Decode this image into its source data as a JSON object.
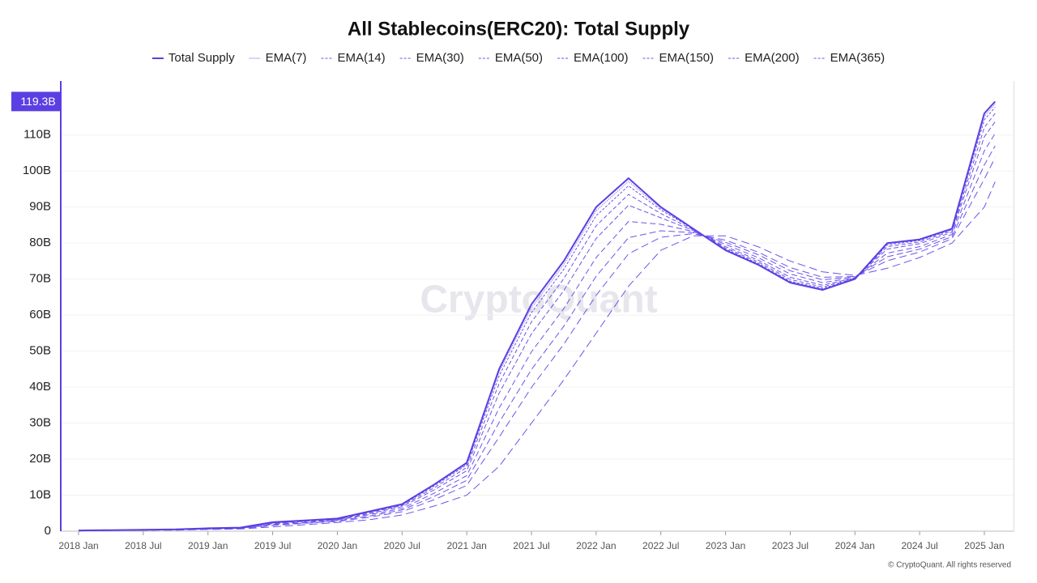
{
  "chart_data": {
    "type": "line",
    "title": "All Stablecoins(ERC20): Total Supply",
    "watermark": "CryptoQuant",
    "footer": "© CryptoQuant. All rights reserved",
    "x": [
      "2018-01",
      "2018-04",
      "2018-07",
      "2018-10",
      "2019-01",
      "2019-04",
      "2019-07",
      "2019-10",
      "2020-01",
      "2020-04",
      "2020-07",
      "2020-10",
      "2021-01",
      "2021-04",
      "2021-07",
      "2021-10",
      "2022-01",
      "2022-04",
      "2022-07",
      "2022-10",
      "2023-01",
      "2023-04",
      "2023-07",
      "2023-10",
      "2024-01",
      "2024-04",
      "2024-07",
      "2024-10",
      "2025-01",
      "2025-02"
    ],
    "xlim": [
      "2017-12",
      "2025-03"
    ],
    "xticks": [
      {
        "value": "2018-01",
        "label": "2018 Jan"
      },
      {
        "value": "2018-07",
        "label": "2018 Jul"
      },
      {
        "value": "2019-01",
        "label": "2019 Jan"
      },
      {
        "value": "2019-07",
        "label": "2019 Jul"
      },
      {
        "value": "2020-01",
        "label": "2020 Jan"
      },
      {
        "value": "2020-07",
        "label": "2020 Jul"
      },
      {
        "value": "2021-01",
        "label": "2021 Jan"
      },
      {
        "value": "2021-07",
        "label": "2021 Jul"
      },
      {
        "value": "2022-01",
        "label": "2022 Jan"
      },
      {
        "value": "2022-07",
        "label": "2022 Jul"
      },
      {
        "value": "2023-01",
        "label": "2023 Jan"
      },
      {
        "value": "2023-07",
        "label": "2023 Jul"
      },
      {
        "value": "2024-01",
        "label": "2024 Jan"
      },
      {
        "value": "2024-07",
        "label": "2024 Jul"
      },
      {
        "value": "2025-01",
        "label": "2025 Jan"
      }
    ],
    "ylim": [
      0,
      125
    ],
    "yticks": [
      0,
      {
        "value": 10,
        "label": "10B"
      },
      {
        "value": 20,
        "label": "20B"
      },
      {
        "value": 30,
        "label": "30B"
      },
      {
        "value": 40,
        "label": "40B"
      },
      {
        "value": 50,
        "label": "50B"
      },
      {
        "value": 60,
        "label": "60B"
      },
      {
        "value": 70,
        "label": "70B"
      },
      {
        "value": 80,
        "label": "80B"
      },
      {
        "value": 90,
        "label": "90B"
      },
      {
        "value": 100,
        "label": "100B"
      },
      {
        "value": 110,
        "label": "110B"
      }
    ],
    "grid": true,
    "series": [
      {
        "name": "Total Supply",
        "color": "#5b3fe3",
        "width": 2,
        "dash": "none",
        "values": [
          0.2,
          0.3,
          0.4,
          0.5,
          0.8,
          1.0,
          2.5,
          3.0,
          3.5,
          5.5,
          7.5,
          13,
          19,
          45,
          63,
          75,
          90,
          98,
          90,
          84,
          78,
          74,
          69,
          67,
          70,
          80,
          81,
          84,
          116,
          119.3
        ],
        "value_labels": [
          null,
          null,
          null,
          null,
          null,
          null,
          null,
          null,
          null,
          null,
          null,
          null,
          null,
          null,
          null,
          null,
          null,
          null,
          null,
          null,
          null,
          null,
          null,
          null,
          null,
          null,
          null,
          null,
          null,
          "119.3B"
        ]
      },
      {
        "name": "EMA(7)",
        "color": "#6a55ea",
        "width": 1,
        "dash": "1 1.5",
        "values": [
          0.2,
          0.3,
          0.4,
          0.5,
          0.8,
          1.0,
          2.5,
          3.0,
          3.5,
          5.4,
          7.4,
          12.8,
          18.7,
          44.2,
          62.0,
          74.0,
          89.0,
          97.1,
          89.6,
          83.9,
          78.1,
          74.2,
          69.2,
          67.2,
          70.0,
          79.8,
          80.9,
          83.9,
          115.2,
          118.6
        ]
      },
      {
        "name": "EMA(14)",
        "color": "#6a55ea",
        "width": 1,
        "dash": "3 2",
        "values": [
          0.2,
          0.3,
          0.4,
          0.5,
          0.8,
          1.0,
          2.4,
          2.9,
          3.4,
          5.3,
          7.3,
          12.6,
          18.4,
          43.1,
          60.7,
          72.7,
          87.6,
          95.9,
          89.2,
          83.9,
          78.3,
          74.4,
          69.4,
          67.4,
          70.1,
          79.5,
          80.7,
          83.7,
          114.2,
          117.7
        ]
      },
      {
        "name": "EMA(30)",
        "color": "#6a55ea",
        "width": 1,
        "dash": "5 3",
        "values": [
          0.2,
          0.3,
          0.4,
          0.5,
          0.8,
          0.9,
          2.3,
          2.8,
          3.3,
          5.2,
          7.1,
          12.1,
          17.7,
          41.0,
          58.1,
          70.1,
          84.8,
          93.5,
          88.2,
          83.7,
          78.6,
          74.8,
          69.9,
          67.8,
          70.2,
          79.0,
          80.3,
          83.4,
          112.1,
          116.0
        ]
      },
      {
        "name": "EMA(50)",
        "color": "#6a55ea",
        "width": 1,
        "dash": "6 3",
        "values": [
          0.2,
          0.3,
          0.4,
          0.5,
          0.7,
          0.9,
          2.2,
          2.7,
          3.2,
          4.9,
          6.8,
          11.5,
          16.8,
          38.3,
          54.8,
          66.8,
          81.3,
          90.5,
          87.0,
          83.5,
          79.0,
          75.3,
          70.5,
          68.3,
          70.3,
          78.3,
          79.8,
          83.0,
          109.5,
          113.7
        ]
      },
      {
        "name": "EMA(100)",
        "color": "#6a55ea",
        "width": 1,
        "dash": "7 4",
        "values": [
          0.2,
          0.3,
          0.3,
          0.4,
          0.7,
          0.8,
          2.0,
          2.5,
          3.1,
          4.6,
          6.3,
          10.6,
          15.4,
          34.2,
          49.8,
          61.8,
          76.0,
          86.0,
          85.2,
          83.2,
          79.6,
          76.0,
          71.4,
          69.0,
          70.4,
          77.2,
          79.0,
          82.4,
          105.6,
          110.4
        ]
      },
      {
        "name": "EMA(150)",
        "color": "#6a55ea",
        "width": 1,
        "dash": "8 4",
        "values": [
          0.1,
          0.2,
          0.3,
          0.4,
          0.6,
          0.8,
          1.8,
          2.3,
          2.9,
          4.2,
          5.9,
          9.7,
          14.1,
          30.2,
          44.9,
          56.9,
          70.8,
          81.5,
          83.4,
          82.9,
          80.2,
          76.8,
          72.3,
          69.8,
          70.6,
          76.2,
          78.3,
          81.8,
          101.7,
          107.0
        ]
      },
      {
        "name": "EMA(200)",
        "color": "#6a55ea",
        "width": 1,
        "dash": "9 5",
        "values": [
          0.1,
          0.2,
          0.3,
          0.4,
          0.6,
          0.7,
          1.6,
          2.2,
          2.7,
          3.9,
          5.4,
          8.8,
          12.7,
          26.1,
          39.9,
          51.9,
          65.5,
          77.0,
          81.6,
          82.6,
          80.8,
          77.5,
          73.2,
          70.5,
          70.7,
          75.1,
          77.5,
          81.2,
          97.8,
          103.7
        ]
      },
      {
        "name": "EMA(365)",
        "color": "#6a55ea",
        "width": 1,
        "dash": "10 5",
        "values": [
          0.1,
          0.2,
          0.25,
          0.3,
          0.5,
          0.6,
          1.2,
          1.8,
          2.4,
          3.2,
          4.5,
          7,
          10,
          18,
          30,
          42,
          55,
          68,
          78,
          82,
          82,
          79,
          75,
          72,
          71,
          73,
          76,
          80,
          90,
          97
        ]
      }
    ]
  }
}
